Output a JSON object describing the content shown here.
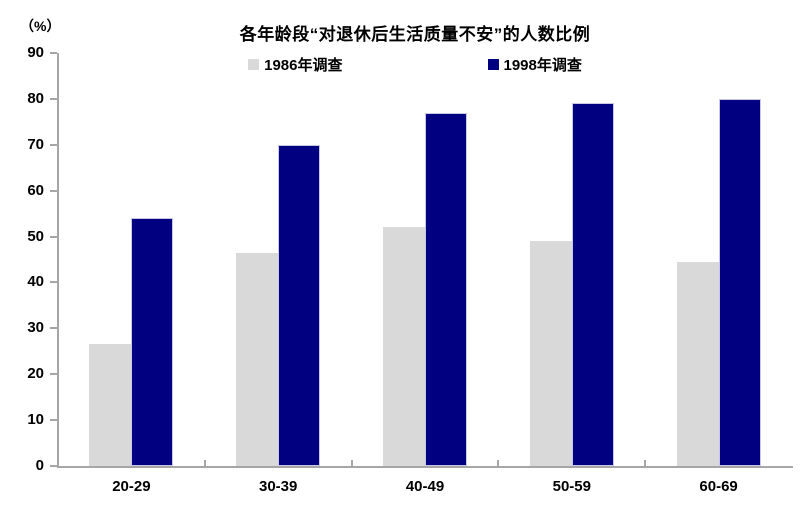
{
  "chart_data": {
    "type": "bar",
    "title": "各年龄段“对退休后生活质量不安”的人数比例",
    "ylabel": "（%）",
    "xlabel": "",
    "categories": [
      "20-29",
      "30-39",
      "40-49",
      "50-59",
      "60-69"
    ],
    "series": [
      {
        "name": "1986年调查",
        "color": "#d9d9d9",
        "values": [
          26.5,
          46.5,
          52,
          49,
          44.5
        ]
      },
      {
        "name": "1998年调查",
        "color": "#000080",
        "values": [
          54,
          70,
          77,
          79,
          80
        ]
      }
    ],
    "ylim": [
      0,
      90
    ],
    "ytick_step": 10,
    "grid": false,
    "legend_position": "top-center"
  },
  "colors": {
    "axis": "#a6a6a6",
    "text": "#000000",
    "background": "#ffffff",
    "bar_1998_edge": "#c8c8e6"
  }
}
